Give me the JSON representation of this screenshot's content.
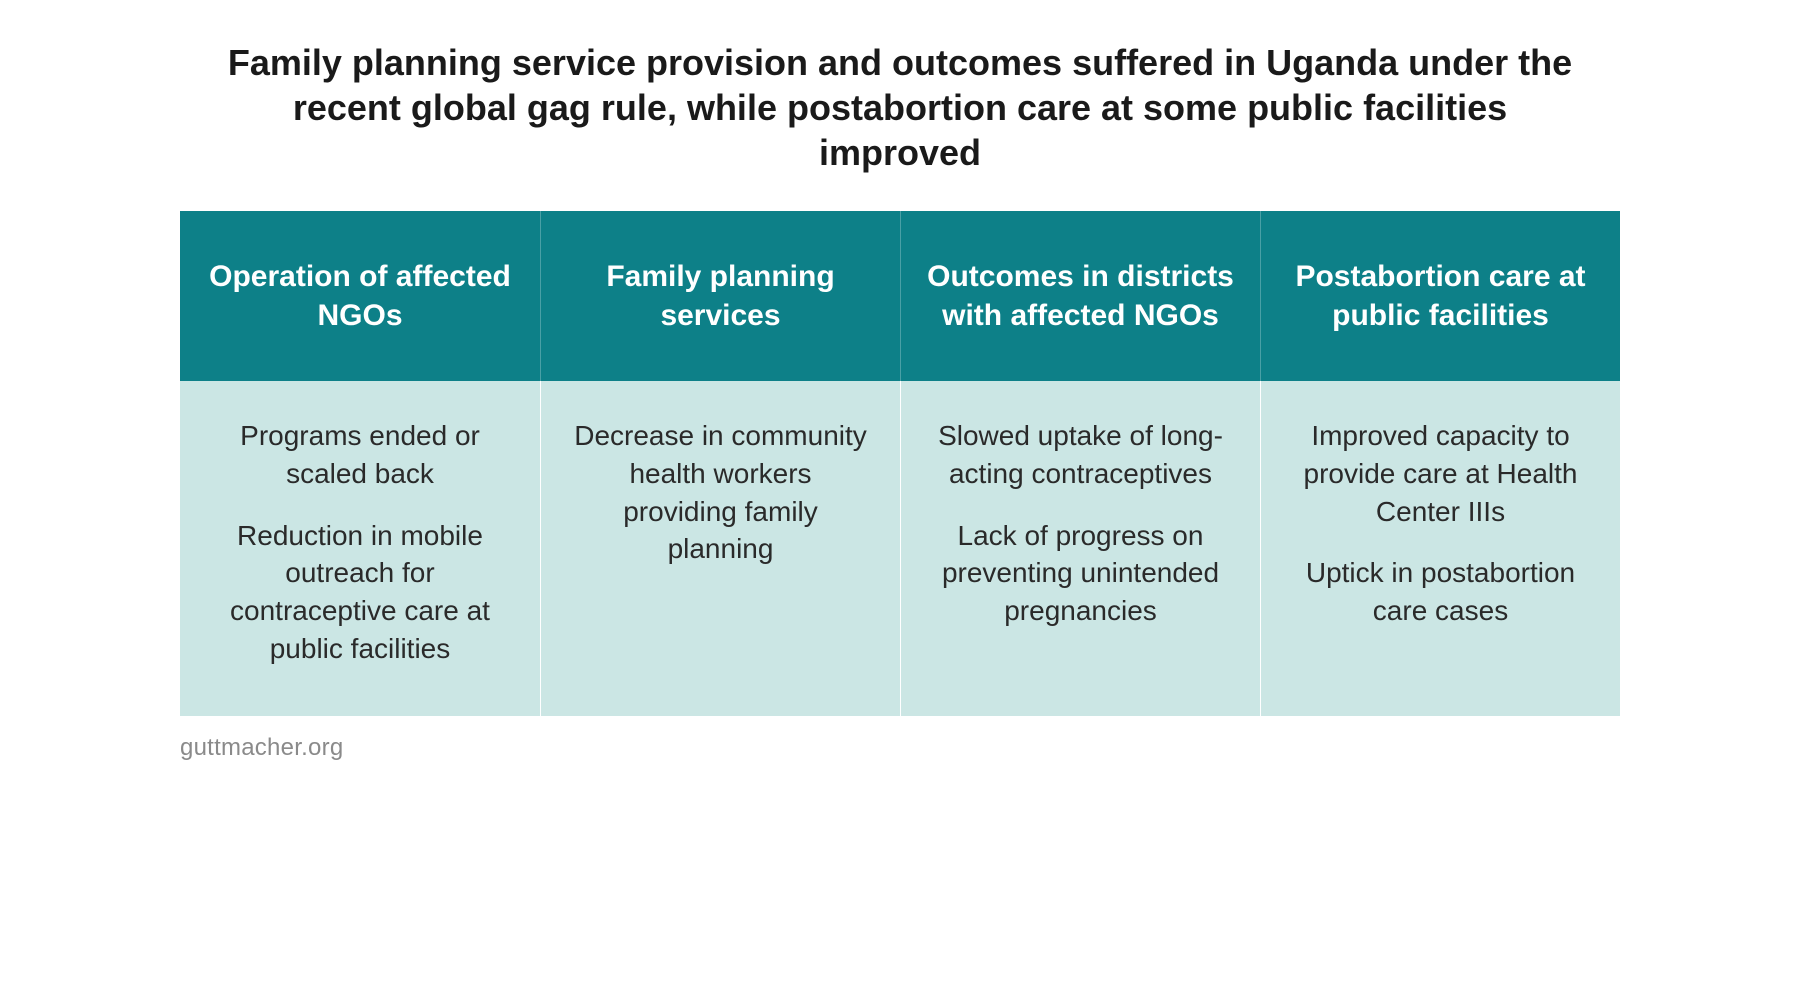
{
  "title": "Family planning service provision and outcomes suffered in Uganda under the recent global gag rule, while postabortion care at some public facilities improved",
  "table": {
    "header_bg": "#0d8088",
    "header_text_color": "#ffffff",
    "body_bg": "#cbe6e4",
    "body_text_color": "#2a2a2a",
    "header_fontsize": 30,
    "body_fontsize": 28,
    "header_min_height": 170,
    "columns": [
      {
        "header": "Operation of affected NGOs",
        "items": [
          "Programs ended or scaled back",
          "Reduction in mobile outreach for contraceptive care at public facilities"
        ]
      },
      {
        "header": "Family planning services",
        "items": [
          "Decrease in community health workers providing family planning"
        ]
      },
      {
        "header": "Outcomes in districts with affected NGOs",
        "items": [
          "Slowed uptake of long-acting contraceptives",
          "Lack of progress on preventing unintended pregnancies"
        ]
      },
      {
        "header": "Postabortion care at public facilities",
        "items": [
          "Improved capacity to provide care at Health Center IIIs",
          "Uptick in postabortion care cases"
        ]
      }
    ]
  },
  "source": "guttmacher.org",
  "title_fontsize": 36,
  "title_color": "#1a1a1a",
  "source_fontsize": 24,
  "source_color": "#8a8a8a",
  "background_color": "#ffffff"
}
